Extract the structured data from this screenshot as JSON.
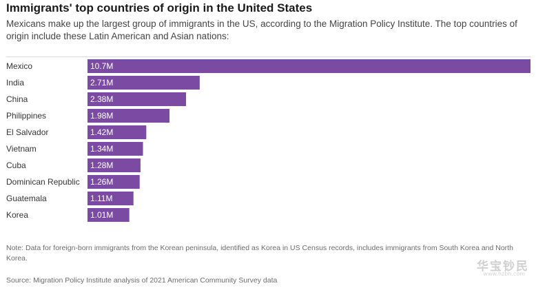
{
  "header": {
    "title": "Immigrants' top countries of origin in the United States",
    "subtitle": "Mexicans make up the largest group of immigrants in the US, according to the Migration Policy Institute. The top countries of origin include these Latin American and Asian nations:"
  },
  "chart_data": {
    "type": "bar",
    "orientation": "horizontal",
    "categories": [
      "Mexico",
      "India",
      "China",
      "Philippines",
      "El Salvador",
      "Vietnam",
      "Cuba",
      "Dominican Republic",
      "Guatemala",
      "Korea"
    ],
    "values": [
      10.7,
      2.71,
      2.38,
      1.98,
      1.42,
      1.34,
      1.28,
      1.26,
      1.11,
      1.01
    ],
    "labels": [
      "10.7M",
      "2.71M",
      "2.38M",
      "1.98M",
      "1.42M",
      "1.34M",
      "1.28M",
      "1.26M",
      "1.11M",
      "1.01M"
    ],
    "unit": "M",
    "xlim": [
      0,
      10.7
    ],
    "grid": false,
    "bar_color": "#7b4aa3",
    "value_label_color": "#ffffff"
  },
  "footer": {
    "note": "Note: Data for foreign-born immigrants from the Korean peninsula, identified as Korea in US Census records, includes immigrants from South Korea and North Korea.",
    "source": "Source: Migration Policy Institute analysis of 2021 American Community Survey data"
  },
  "watermark": {
    "text": "华宝钞民",
    "subtext": "www.hzbn.com"
  }
}
